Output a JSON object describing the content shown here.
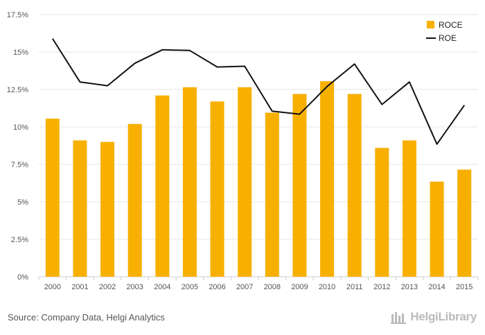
{
  "chart_data": {
    "type": "bar",
    "categories": [
      "2000",
      "2001",
      "2002",
      "2003",
      "2004",
      "2005",
      "2006",
      "2007",
      "2008",
      "2009",
      "2010",
      "2011",
      "2012",
      "2013",
      "2014",
      "2015"
    ],
    "series": [
      {
        "name": "ROCE",
        "kind": "bar",
        "color": "#f7b000",
        "values": [
          10.55,
          9.1,
          9.0,
          10.2,
          12.1,
          12.65,
          11.7,
          12.65,
          10.95,
          12.2,
          13.05,
          12.2,
          8.6,
          9.1,
          6.35,
          7.15
        ]
      },
      {
        "name": "ROE",
        "kind": "line",
        "color": "#111111",
        "values": [
          15.9,
          13.0,
          12.75,
          14.25,
          15.15,
          15.1,
          14.0,
          14.05,
          11.05,
          10.85,
          12.7,
          14.2,
          11.5,
          13.0,
          8.85,
          11.45
        ]
      }
    ],
    "ylim": [
      0,
      17.5
    ],
    "y_ticks": [
      0,
      2.5,
      5,
      7.5,
      10,
      12.5,
      15,
      17.5
    ],
    "y_tick_labels": [
      "0%",
      "2.5%",
      "5%",
      "7.5%",
      "10%",
      "12.5%",
      "15%",
      "17.5%"
    ],
    "grid": true,
    "legend_position": "top-right",
    "title": "",
    "xlabel": "",
    "ylabel": ""
  },
  "footer": {
    "source": "Source: Company Data, Helgi Analytics",
    "brand": "HelgiLibrary"
  }
}
